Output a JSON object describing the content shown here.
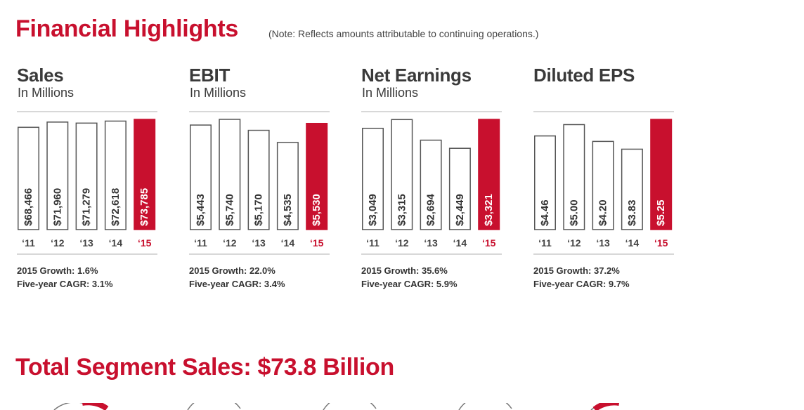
{
  "header": {
    "title": "Financial Highlights",
    "note": "(Note: Reflects amounts attributable to continuing operations.)"
  },
  "colors": {
    "accent": "#c8102e",
    "bar_outline": "#555555",
    "text": "#3a3a3a"
  },
  "chart_data": [
    {
      "type": "bar",
      "title": "Sales",
      "ylabel": "In Millions",
      "categories": [
        "‘11",
        "‘12",
        "‘13",
        "‘14",
        "‘15"
      ],
      "values": [
        68466,
        71960,
        71279,
        72618,
        73785
      ],
      "labels": [
        "$68,466",
        "$71,960",
        "$71,279",
        "$72,618",
        "$73,785"
      ],
      "highlight_index": 4,
      "growth": "2015 Growth: 1.6%",
      "cagr": "Five-year CAGR: 3.1%"
    },
    {
      "type": "bar",
      "title": "EBIT",
      "ylabel": "In Millions",
      "categories": [
        "‘11",
        "‘12",
        "‘13",
        "‘14",
        "‘15"
      ],
      "values": [
        5443,
        5740,
        5170,
        4535,
        5530
      ],
      "labels": [
        "$5,443",
        "$5,740",
        "$5,170",
        "$4,535",
        "$5,530"
      ],
      "highlight_index": 4,
      "growth": "2015 Growth: 22.0%",
      "cagr": "Five-year CAGR: 3.4%"
    },
    {
      "type": "bar",
      "title": "Net Earnings",
      "ylabel": "In Millions",
      "categories": [
        "‘11",
        "‘12",
        "‘13",
        "‘14",
        "‘15"
      ],
      "values": [
        3049,
        3315,
        2694,
        2449,
        3321
      ],
      "labels": [
        "$3,049",
        "$3,315",
        "$2,694",
        "$2,449",
        "$3,321"
      ],
      "highlight_index": 4,
      "growth": "2015 Growth: 35.6%",
      "cagr": "Five-year CAGR: 5.9%"
    },
    {
      "type": "bar",
      "title": "Diluted EPS",
      "ylabel": "",
      "categories": [
        "‘11",
        "‘12",
        "‘13",
        "‘14",
        "‘15"
      ],
      "values": [
        4.46,
        5.0,
        4.2,
        3.83,
        5.25
      ],
      "labels": [
        "$4.46",
        "$5.00",
        "$4.20",
        "$3.83",
        "$5.25"
      ],
      "highlight_index": 4,
      "growth": "2015 Growth: 37.2%",
      "cagr": "Five-year CAGR: 9.7%"
    }
  ],
  "segments": {
    "title": "Total Segment Sales: $73.8 Billion"
  }
}
